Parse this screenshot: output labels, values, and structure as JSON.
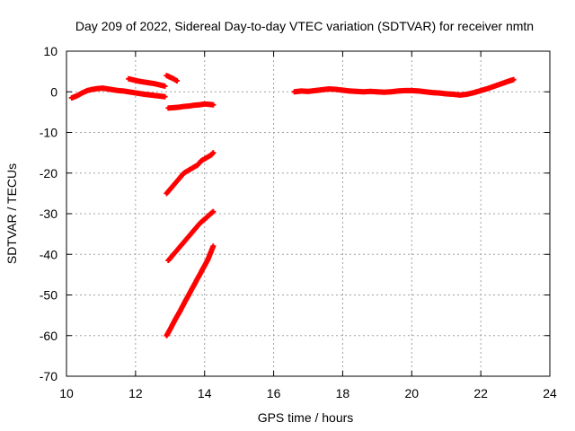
{
  "chart_data": {
    "type": "scatter",
    "title": "Day 209 of 2022, Sidereal Day-to-day VTEC variation (SDTVAR) for receiver nmtn",
    "xlabel": "GPS time / hours",
    "ylabel": "SDTVAR / TECUs",
    "xlim": [
      10,
      24
    ],
    "ylim": [
      -70,
      10
    ],
    "xticks": [
      10,
      12,
      14,
      16,
      18,
      20,
      22,
      24
    ],
    "yticks": [
      -70,
      -60,
      -50,
      -40,
      -30,
      -20,
      -10,
      0,
      10
    ],
    "grid": true,
    "marker": "plus",
    "color": "#ff0000",
    "series": [
      {
        "x": [
          10.15,
          10.3,
          10.45,
          10.6,
          10.75,
          10.9,
          11.05,
          11.2,
          11.35,
          11.5,
          11.65,
          11.8,
          11.95,
          12.1,
          12.25,
          12.45,
          12.65,
          12.85
        ],
        "y": [
          -1.5,
          -1.0,
          -0.3,
          0.3,
          0.6,
          0.8,
          0.9,
          0.7,
          0.5,
          0.3,
          0.2,
          0.0,
          -0.2,
          -0.4,
          -0.6,
          -0.8,
          -1.0,
          -1.2
        ]
      },
      {
        "x": [
          11.8,
          11.95,
          12.1,
          12.25,
          12.4,
          12.55,
          12.7,
          12.85
        ],
        "y": [
          3.2,
          2.9,
          2.6,
          2.4,
          2.2,
          2.0,
          1.7,
          1.4
        ]
      },
      {
        "x": [
          12.9,
          13.0,
          13.1,
          13.2
        ],
        "y": [
          4.0,
          3.6,
          3.2,
          2.7
        ]
      },
      {
        "x": [
          12.95,
          13.1,
          13.25,
          13.4,
          13.55,
          13.7,
          13.85,
          14.0,
          14.15,
          14.25
        ],
        "y": [
          -4.0,
          -3.9,
          -3.8,
          -3.6,
          -3.5,
          -3.3,
          -3.2,
          -3.0,
          -3.1,
          -3.2
        ]
      },
      {
        "x": [
          12.9,
          13.0,
          13.1,
          13.2,
          13.3,
          13.4,
          13.5,
          13.6,
          13.7,
          13.8,
          13.9,
          14.0,
          14.1,
          14.2,
          14.25
        ],
        "y": [
          -25.0,
          -24.0,
          -23.0,
          -22.0,
          -21.0,
          -20.0,
          -19.5,
          -19.0,
          -18.5,
          -18.0,
          -17.0,
          -16.5,
          -16.0,
          -15.5,
          -15.0
        ]
      },
      {
        "x": [
          12.95,
          13.05,
          13.15,
          13.25,
          13.35,
          13.45,
          13.55,
          13.65,
          13.75,
          13.85,
          13.95,
          14.05,
          14.15,
          14.25
        ],
        "y": [
          -41.5,
          -40.5,
          -39.5,
          -38.5,
          -37.5,
          -36.5,
          -35.5,
          -34.5,
          -33.5,
          -32.5,
          -31.7,
          -31.0,
          -30.2,
          -29.5
        ]
      },
      {
        "x": [
          12.9,
          12.98,
          13.06,
          13.14,
          13.22,
          13.3,
          13.38,
          13.46,
          13.54,
          13.62,
          13.7,
          13.78,
          13.86,
          13.94,
          14.02,
          14.1,
          14.18,
          14.25
        ],
        "y": [
          -60.0,
          -58.8,
          -57.5,
          -56.2,
          -55.0,
          -53.8,
          -52.5,
          -51.2,
          -50.0,
          -48.7,
          -47.5,
          -46.2,
          -45.0,
          -43.7,
          -42.5,
          -41.2,
          -39.5,
          -38.0
        ]
      },
      {
        "x": [
          16.6,
          16.8,
          17.0,
          17.2,
          17.4,
          17.6,
          17.8,
          18.0,
          18.2,
          18.4,
          18.6,
          18.8,
          19.0,
          19.2,
          19.4,
          19.6,
          19.8,
          20.0,
          20.2,
          20.4,
          20.6,
          20.8,
          21.0,
          21.2,
          21.4,
          21.6,
          21.8,
          22.0,
          22.2,
          22.4,
          22.6,
          22.8,
          22.95
        ],
        "y": [
          0.0,
          0.2,
          0.1,
          0.3,
          0.5,
          0.7,
          0.6,
          0.4,
          0.2,
          0.1,
          0.0,
          0.1,
          0.0,
          -0.1,
          0.0,
          0.2,
          0.3,
          0.3,
          0.2,
          0.0,
          -0.2,
          -0.3,
          -0.5,
          -0.6,
          -0.8,
          -0.6,
          -0.2,
          0.3,
          0.8,
          1.4,
          2.0,
          2.6,
          3.0
        ]
      }
    ]
  }
}
